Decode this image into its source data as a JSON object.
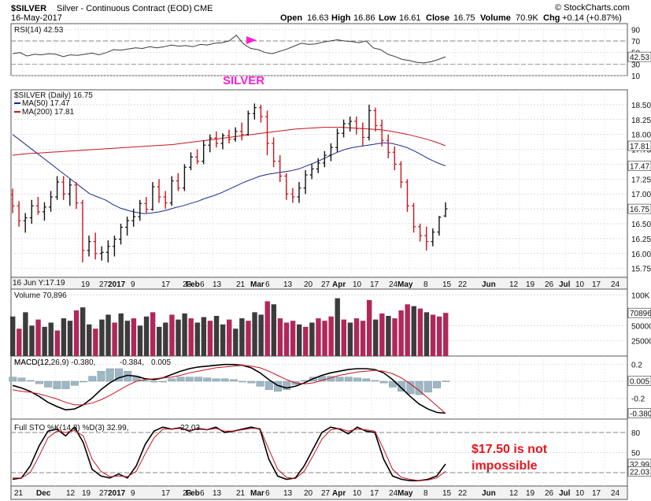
{
  "header": {
    "symbol": "$SILVER",
    "name": "Silver - Continuous Contract (EOD)",
    "exchange": "CME",
    "date": "16-May-2017",
    "open_label": "Open",
    "open": "16.63",
    "high_label": "High",
    "high": "16.86",
    "low_label": "Low",
    "low": "16.61",
    "close_label": "Close",
    "close": "16.75",
    "volume_label": "Volume",
    "volume": "70.9K",
    "chg_label": "Chg",
    "chg": "+0.14 (+0.87%)",
    "watermark": "© StockCharts.com"
  },
  "annotations": {
    "silver_label": "SILVER",
    "note_line1": "$17.50 is not",
    "note_line2": "impossible",
    "contract_label": "16 Jun Y:17.19",
    "colors": {
      "magenta": "#ff1fd0",
      "note_red": "#e8141d"
    }
  },
  "x_axis": {
    "middle_ticks": [
      "19",
      "27",
      "2017",
      "9",
      "17",
      "23",
      "Feb",
      "6",
      "13",
      "21",
      "Mar",
      "6",
      "13",
      "20",
      "27",
      "Apr",
      "10",
      "17",
      "24",
      "May",
      "8",
      "15",
      "22",
      "Jun",
      "12",
      "19",
      "26",
      "Jul",
      "10",
      "17",
      "24"
    ],
    "bottom_ticks": [
      "21",
      "Dec",
      "12",
      "19",
      "27",
      "2017",
      "9",
      "17",
      "23",
      "Feb",
      "6",
      "13",
      "21",
      "Mar",
      "6",
      "13",
      "20",
      "27",
      "Apr",
      "10",
      "17",
      "24",
      "May",
      "8",
      "15",
      "22",
      "Jun",
      "12",
      "19",
      "26",
      "Jul",
      "10",
      "17",
      "24"
    ]
  },
  "chart_data": [
    {
      "panel": "rsi",
      "type": "line",
      "title": "RSI(14) 42.53",
      "ylim": [
        10,
        100
      ],
      "yticks": [
        90,
        70,
        50,
        30,
        10
      ],
      "ticks_extra": [
        "42.53"
      ],
      "reference_lines": [
        70,
        30
      ],
      "values": [
        48,
        50,
        44,
        47,
        46,
        48,
        47,
        43,
        46,
        45,
        47,
        49,
        46,
        50,
        55,
        54,
        56,
        58,
        57,
        60,
        58,
        60,
        63,
        61,
        62,
        60,
        64,
        63,
        66,
        67,
        70,
        80,
        65,
        57,
        55,
        50,
        48,
        52,
        56,
        61,
        66,
        64,
        65,
        68,
        70,
        72,
        70,
        69,
        67,
        70,
        58,
        55,
        47,
        43,
        38,
        36,
        33,
        32,
        34,
        38,
        42.53
      ],
      "color": "#3c3c3c"
    },
    {
      "panel": "price",
      "type": "ohlc",
      "title": "$SILVER (Daily) 16.75",
      "ylim": [
        15.6,
        18.75
      ],
      "yticks": [
        18.5,
        18.25,
        18.0,
        17.75,
        17.5,
        17.25,
        17.0,
        16.75,
        16.5,
        16.25,
        16.0,
        15.75
      ],
      "tick_labels": [
        "18.50",
        "18.25",
        "18.00",
        "17.75",
        "17.50",
        "17.25",
        "17.00",
        "16.75",
        "16.50",
        "16.25",
        "16.00",
        "15.75"
      ],
      "ticks_extra": [
        "17.81",
        "17.47",
        "16.75"
      ],
      "series": [
        {
          "name": "MA(50) 17.47",
          "color": "#1a2a8c",
          "values": [
            18.0,
            17.9,
            17.8,
            17.7,
            17.6,
            17.5,
            17.4,
            17.3,
            17.2,
            17.1,
            17.0,
            16.95,
            16.9,
            16.82,
            16.76,
            16.72,
            16.69,
            16.67,
            16.68,
            16.7,
            16.73,
            16.77,
            16.8,
            16.84,
            16.88,
            16.93,
            16.97,
            17.02,
            17.08,
            17.14,
            17.2,
            17.25,
            17.3,
            17.33,
            17.35,
            17.37,
            17.39,
            17.42,
            17.47,
            17.52,
            17.58,
            17.64,
            17.7,
            17.75,
            17.78,
            17.8,
            17.82,
            17.84,
            17.86,
            17.85,
            17.82,
            17.78,
            17.72,
            17.65,
            17.58,
            17.52,
            17.47
          ]
        },
        {
          "name": "MA(200) 17.81",
          "color": "#c8141e",
          "values": [
            17.65,
            17.67,
            17.68,
            17.69,
            17.7,
            17.71,
            17.72,
            17.73,
            17.74,
            17.75,
            17.76,
            17.77,
            17.78,
            17.79,
            17.8,
            17.81,
            17.82,
            17.83,
            17.85,
            17.87,
            17.89,
            17.91,
            17.93,
            17.95,
            17.97,
            17.99,
            18.01,
            18.03,
            18.05,
            18.07,
            18.09,
            18.1,
            18.11,
            18.12,
            18.12,
            18.12,
            18.11,
            18.1,
            18.09,
            18.08,
            18.06,
            18.03,
            18.0,
            17.96,
            17.92,
            17.87,
            17.81
          ]
        }
      ],
      "bars": [
        [
          16.99,
          17.09,
          16.68,
          16.8
        ],
        [
          16.8,
          16.88,
          16.45,
          16.55
        ],
        [
          16.55,
          16.68,
          16.35,
          16.6
        ],
        [
          16.6,
          16.9,
          16.5,
          16.8
        ],
        [
          16.8,
          16.95,
          16.65,
          16.7
        ],
        [
          16.7,
          16.86,
          16.55,
          16.78
        ],
        [
          16.78,
          17.05,
          16.7,
          16.95
        ],
        [
          16.95,
          17.3,
          16.9,
          17.2
        ],
        [
          17.2,
          17.3,
          16.9,
          17.0
        ],
        [
          17.0,
          17.25,
          16.8,
          17.15
        ],
        [
          17.15,
          17.2,
          16.75,
          16.85
        ],
        [
          16.85,
          16.9,
          15.85,
          16.05
        ],
        [
          16.05,
          16.3,
          15.95,
          16.2
        ],
        [
          16.2,
          16.35,
          15.9,
          16.0
        ],
        [
          16.0,
          16.12,
          15.88,
          16.02
        ],
        [
          16.02,
          16.22,
          15.85,
          16.12
        ],
        [
          16.12,
          16.3,
          15.95,
          16.24
        ],
        [
          16.24,
          16.5,
          16.15,
          16.44
        ],
        [
          16.44,
          16.62,
          16.3,
          16.55
        ],
        [
          16.55,
          16.75,
          16.45,
          16.62
        ],
        [
          16.62,
          16.9,
          16.55,
          16.84
        ],
        [
          16.84,
          16.95,
          16.68,
          16.74
        ],
        [
          16.74,
          17.2,
          16.72,
          17.12
        ],
        [
          17.12,
          17.25,
          16.85,
          16.95
        ],
        [
          16.95,
          17.05,
          16.75,
          16.85
        ],
        [
          16.85,
          17.3,
          16.8,
          17.22
        ],
        [
          17.22,
          17.35,
          17.05,
          17.1
        ],
        [
          17.1,
          17.5,
          17.05,
          17.45
        ],
        [
          17.45,
          17.7,
          17.4,
          17.62
        ],
        [
          17.62,
          17.75,
          17.5,
          17.55
        ],
        [
          17.55,
          17.9,
          17.5,
          17.82
        ],
        [
          17.82,
          18.0,
          17.7,
          17.94
        ],
        [
          17.94,
          18.05,
          17.78,
          17.85
        ],
        [
          17.85,
          18.02,
          17.75,
          17.98
        ],
        [
          17.98,
          18.08,
          17.85,
          17.92
        ],
        [
          17.92,
          18.12,
          17.88,
          18.05
        ],
        [
          18.05,
          18.2,
          17.9,
          18.0
        ],
        [
          18.0,
          18.4,
          17.98,
          18.35
        ],
        [
          18.35,
          18.52,
          18.25,
          18.45
        ],
        [
          18.45,
          18.5,
          18.2,
          18.3
        ],
        [
          18.3,
          18.4,
          17.65,
          17.85
        ],
        [
          17.85,
          17.95,
          17.45,
          17.55
        ],
        [
          17.55,
          17.65,
          17.2,
          17.3
        ],
        [
          17.3,
          17.35,
          16.9,
          17.0
        ],
        [
          17.0,
          17.1,
          16.85,
          16.95
        ],
        [
          16.95,
          17.2,
          16.85,
          17.1
        ],
        [
          17.1,
          17.4,
          17.0,
          17.32
        ],
        [
          17.32,
          17.5,
          17.25,
          17.42
        ],
        [
          17.42,
          17.6,
          17.35,
          17.52
        ],
        [
          17.52,
          17.72,
          17.45,
          17.65
        ],
        [
          17.65,
          17.85,
          17.55,
          17.78
        ],
        [
          17.78,
          18.1,
          17.7,
          18.02
        ],
        [
          18.02,
          18.25,
          17.95,
          18.18
        ],
        [
          18.18,
          18.3,
          18.05,
          18.22
        ],
        [
          18.22,
          18.3,
          18.0,
          18.1
        ],
        [
          18.1,
          18.2,
          17.8,
          17.95
        ],
        [
          17.95,
          18.5,
          17.9,
          18.4
        ],
        [
          18.4,
          18.45,
          18.05,
          18.15
        ],
        [
          18.15,
          18.25,
          17.8,
          17.9
        ],
        [
          17.9,
          18.0,
          17.6,
          17.7
        ],
        [
          17.7,
          17.8,
          17.4,
          17.5
        ],
        [
          17.5,
          17.55,
          17.1,
          17.2
        ],
        [
          17.2,
          17.25,
          16.7,
          16.8
        ],
        [
          16.8,
          16.85,
          16.35,
          16.45
        ],
        [
          16.45,
          16.5,
          16.2,
          16.3
        ],
        [
          16.3,
          16.45,
          16.05,
          16.2
        ],
        [
          16.2,
          16.42,
          16.12,
          16.36
        ],
        [
          16.36,
          16.63,
          16.3,
          16.61
        ],
        [
          16.63,
          16.86,
          16.61,
          16.75
        ]
      ]
    },
    {
      "panel": "volume",
      "type": "bar",
      "title": "Volume 70,896",
      "ylim": [
        0,
        110000
      ],
      "yticks": [
        100000,
        50000,
        25000
      ],
      "tick_labels": [
        "100K",
        "50000",
        "25000"
      ],
      "ticks_extra": [
        "70896"
      ],
      "up_color": "#3c3c3c",
      "down_color": "#b0285a",
      "values": [
        65000,
        45000,
        72000,
        50000,
        60000,
        48000,
        55000,
        42000,
        62000,
        58000,
        75000,
        80000,
        52000,
        45000,
        60000,
        68000,
        55000,
        70000,
        58000,
        62000,
        50000,
        65000,
        72000,
        48000,
        55000,
        68000,
        60000,
        70000,
        62000,
        55000,
        64000,
        58000,
        66000,
        52000,
        60000,
        45000,
        62000,
        58000,
        72000,
        68000,
        90000,
        85000,
        62000,
        55000,
        58000,
        52000,
        48000,
        55000,
        62000,
        58000,
        65000,
        95000,
        60000,
        55000,
        62000,
        58000,
        92000,
        60000,
        70000,
        66000,
        62000,
        75000,
        85000,
        82000,
        78000,
        72000,
        68000,
        65000,
        70896
      ]
    },
    {
      "panel": "macd",
      "type": "line",
      "title": "MACD(12,26,9) -0.380, -0.384, 0.005",
      "ylim": [
        -0.45,
        0.3
      ],
      "yticks": [
        0.2,
        0.0,
        -0.2
      ],
      "tick_labels": [
        "0.2",
        "0.0",
        "-0.2"
      ],
      "ticks_extra": [
        "0.005",
        "-0.380"
      ],
      "series": [
        {
          "name": "MACD",
          "color": "#000000",
          "values": [
            -0.05,
            -0.08,
            -0.12,
            -0.18,
            -0.25,
            -0.3,
            -0.34,
            -0.33,
            -0.28,
            -0.2,
            -0.1,
            -0.02,
            0.04,
            0.07,
            0.06,
            0.03,
            0.02,
            0.04,
            0.08,
            0.12,
            0.15,
            0.17,
            0.18,
            0.19,
            0.2,
            0.2,
            0.19,
            0.16,
            0.1,
            0.02,
            -0.05,
            -0.08,
            -0.06,
            -0.02,
            0.03,
            0.07,
            0.1,
            0.12,
            0.14,
            0.15,
            0.15,
            0.14,
            0.1,
            0.02,
            -0.08,
            -0.18,
            -0.27,
            -0.33,
            -0.37,
            -0.38
          ]
        },
        {
          "name": "Signal",
          "color": "#c8141e",
          "values": [
            -0.1,
            -0.12,
            -0.13,
            -0.15,
            -0.18,
            -0.21,
            -0.25,
            -0.28,
            -0.28,
            -0.26,
            -0.22,
            -0.17,
            -0.11,
            -0.05,
            0.0,
            0.02,
            0.03,
            0.04,
            0.05,
            0.07,
            0.1,
            0.12,
            0.14,
            0.16,
            0.17,
            0.18,
            0.19,
            0.18,
            0.16,
            0.12,
            0.07,
            0.02,
            -0.02,
            -0.03,
            -0.02,
            0.01,
            0.04,
            0.07,
            0.09,
            0.11,
            0.12,
            0.13,
            0.12,
            0.09,
            0.04,
            -0.03,
            -0.11,
            -0.2,
            -0.29,
            -0.384
          ]
        }
      ]
    },
    {
      "panel": "stochastic",
      "type": "line",
      "title": "Full STO %K(14,3) %D(3) 32.99, 22.03",
      "ylim": [
        0,
        100
      ],
      "yticks": [
        80,
        50,
        20
      ],
      "tick_labels": [
        "80",
        "50",
        "20"
      ],
      "ticks_extra": [
        "32.99",
        "22.03"
      ],
      "reference_lines": [
        80,
        20
      ],
      "series": [
        {
          "name": "%K",
          "color": "#000000",
          "values": [
            10,
            12,
            30,
            60,
            82,
            85,
            75,
            88,
            65,
            25,
            15,
            12,
            18,
            12,
            30,
            62,
            82,
            88,
            85,
            87,
            82,
            86,
            84,
            88,
            80,
            82,
            85,
            88,
            85,
            40,
            15,
            10,
            12,
            30,
            55,
            80,
            88,
            85,
            78,
            88,
            82,
            80,
            40,
            15,
            10,
            8,
            8,
            10,
            15,
            32.99
          ]
        },
        {
          "name": "%D",
          "color": "#c8141e",
          "values": [
            12,
            12,
            20,
            45,
            72,
            82,
            80,
            83,
            75,
            40,
            22,
            14,
            15,
            14,
            22,
            48,
            72,
            85,
            85,
            86,
            83,
            85,
            84,
            86,
            82,
            82,
            84,
            86,
            86,
            55,
            25,
            13,
            11,
            22,
            45,
            70,
            84,
            86,
            82,
            85,
            84,
            82,
            55,
            25,
            13,
            10,
            8,
            9,
            12,
            22.03
          ]
        }
      ]
    }
  ]
}
